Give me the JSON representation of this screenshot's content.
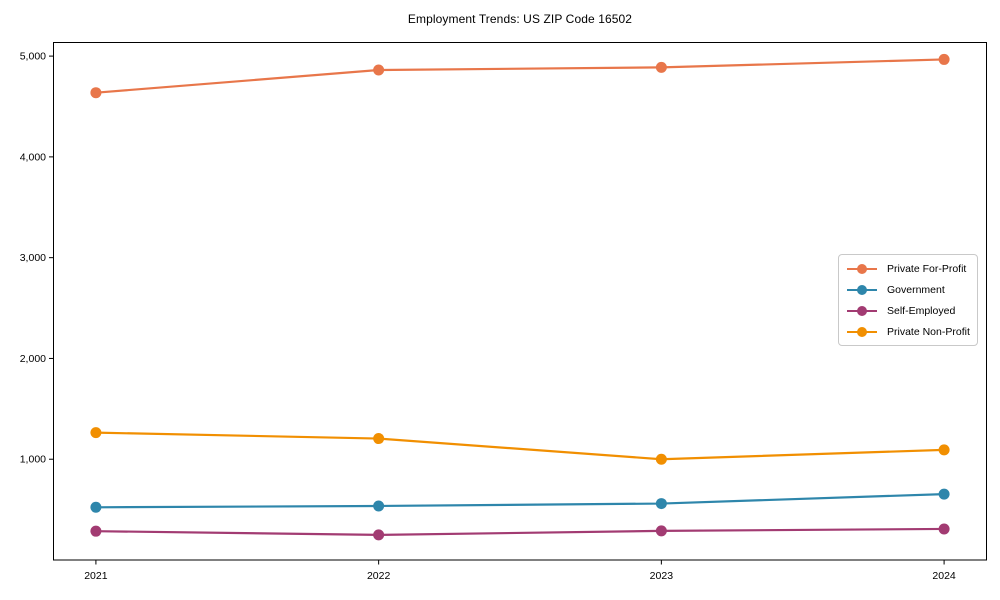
{
  "figure": {
    "background": "#ffffff",
    "axis_color": "#000000",
    "text_color": "#000000"
  },
  "chart_data": {
    "type": "line",
    "title": "Employment Trends: US ZIP Code 16502",
    "x": [
      2021,
      2022,
      2023,
      2024
    ],
    "x_tick_labels": [
      "2021",
      "2022",
      "2023",
      "2024"
    ],
    "y_ticks": [
      1000,
      2000,
      3000,
      4000,
      5000
    ],
    "y_tick_labels": [
      "1,000",
      "2,000",
      "3,000",
      "4,000",
      "5,000"
    ],
    "xlim": [
      2020.85,
      2024.15
    ],
    "ylim": [
      0,
      5135
    ],
    "grid": false,
    "legend_position": "center-right",
    "marker": "circle",
    "series": [
      {
        "name": "Private For-Profit",
        "color": "#e8764a",
        "values": [
          4637,
          4862,
          4888,
          4967
        ]
      },
      {
        "name": "Government",
        "color": "#2e86ab",
        "values": [
          523,
          536,
          560,
          654
        ]
      },
      {
        "name": "Self-Employed",
        "color": "#a23b72",
        "values": [
          286,
          249,
          289,
          308
        ]
      },
      {
        "name": "Private Non-Profit",
        "color": "#f18f01",
        "values": [
          1264,
          1205,
          1000,
          1093
        ]
      }
    ]
  }
}
